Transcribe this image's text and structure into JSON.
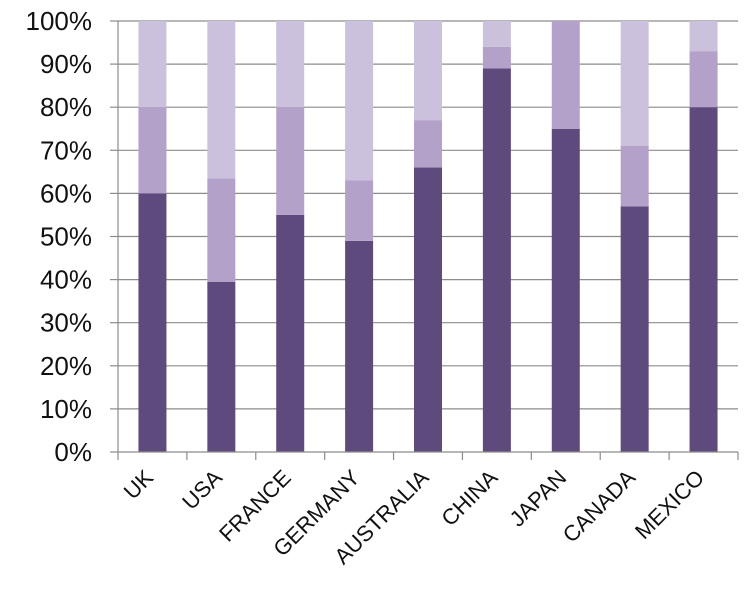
{
  "chart_data": {
    "type": "bar",
    "stacked": true,
    "categories": [
      "UK",
      "USA",
      "FRANCE",
      "GERMANY",
      "AUSTRALIA",
      "CHINA",
      "JAPAN",
      "CANADA",
      "MEXICO"
    ],
    "series": [
      {
        "values": [
          60,
          39.5,
          55,
          49,
          66,
          89,
          75,
          57,
          80
        ],
        "color": "#5e4a7d"
      },
      {
        "values": [
          20,
          24,
          25,
          14,
          11,
          5,
          25,
          14,
          13
        ],
        "color": "#b3a1c9"
      },
      {
        "values": [
          20,
          36.5,
          20,
          37,
          23,
          6,
          0,
          29,
          7
        ],
        "color": "#cbc1dc"
      }
    ],
    "ylim": [
      0,
      100
    ],
    "yticks": [
      "0%",
      "10%",
      "20%",
      "30%",
      "40%",
      "50%",
      "60%",
      "70%",
      "80%",
      "90%",
      "100%"
    ],
    "grid": "horizontal",
    "legend": "none",
    "title": "",
    "xlabel": "",
    "ylabel": ""
  }
}
